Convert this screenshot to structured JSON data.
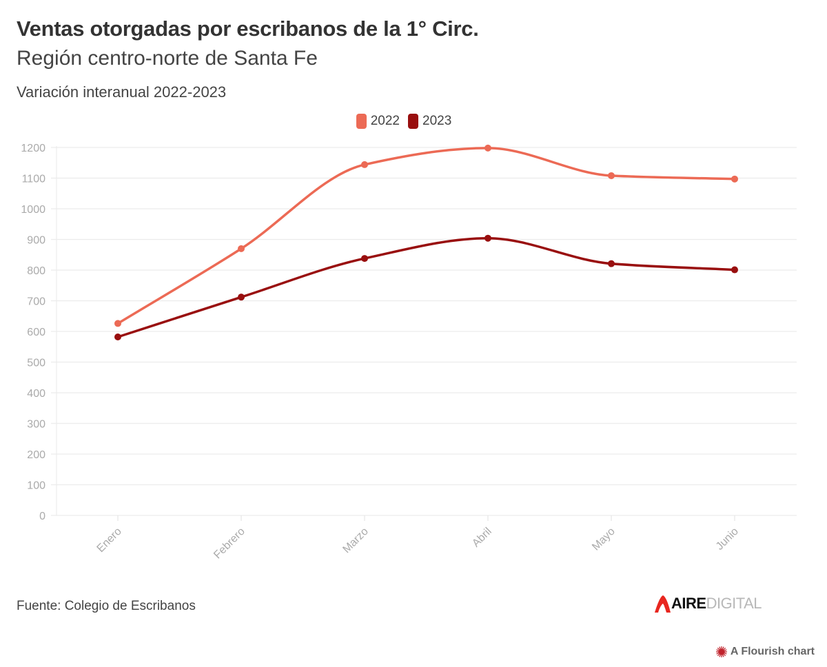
{
  "header": {
    "title": "Ventas otorgadas por escribanos de la 1° Circ.",
    "subtitle": "Región centro-norte de Santa Fe",
    "description": "Variación interanual 2022-2023"
  },
  "legend": [
    {
      "label": "2022",
      "color": "#ec6a55"
    },
    {
      "label": "2023",
      "color": "#990f0f"
    }
  ],
  "footer": {
    "source": "Fuente: Colegio de Escribanos",
    "logo_bold": "AIRE",
    "logo_light": "DIGITAL",
    "logo_color": "#e8261f",
    "flourish_label": "A Flourish chart",
    "flourish_color": "#c0232c"
  },
  "chart_data": {
    "type": "line",
    "title": "Ventas otorgadas por escribanos de la 1° Circ.",
    "subtitle": "Región centro-norte de Santa Fe",
    "xlabel": "",
    "ylabel": "",
    "categories": [
      "Enero",
      "Febrero",
      "Marzo",
      "Abril",
      "Mayo",
      "Junio"
    ],
    "series": [
      {
        "name": "2022",
        "color": "#ec6a55",
        "values": [
          626,
          870,
          1144,
          1198,
          1108,
          1097
        ]
      },
      {
        "name": "2023",
        "color": "#990f0f",
        "values": [
          582,
          712,
          838,
          904,
          821,
          801
        ]
      }
    ],
    "ylim": [
      0,
      1200
    ],
    "yticks": [
      0,
      100,
      200,
      300,
      400,
      500,
      600,
      700,
      800,
      900,
      1000,
      1100,
      1200
    ],
    "grid": true,
    "curve": "smooth",
    "legend_position": "top-center",
    "xtick_rotation_deg": -45
  }
}
